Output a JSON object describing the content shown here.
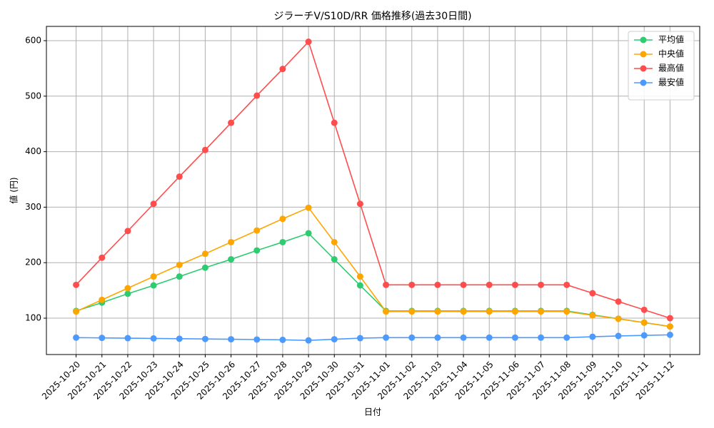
{
  "chart_data": {
    "type": "line",
    "title": "ジラーチV/S10D/RR 価格推移(過去30日間)",
    "x_label": "日付",
    "y_label": "値 (円)",
    "categories": [
      "2025-10-20",
      "2025-10-21",
      "2025-10-22",
      "2025-10-23",
      "2025-10-24",
      "2025-10-25",
      "2025-10-26",
      "2025-10-27",
      "2025-10-28",
      "2025-10-29",
      "2025-10-30",
      "2025-10-31",
      "2025-11-01",
      "2025-11-02",
      "2025-11-03",
      "2025-11-04",
      "2025-11-05",
      "2025-11-06",
      "2025-11-07",
      "2025-11-08",
      "2025-11-09",
      "2025-11-10",
      "2025-11-11",
      "2025-11-12"
    ],
    "series": [
      {
        "name": "平均値",
        "color": "#2ecc71",
        "values": [
          113,
          128,
          144,
          159,
          175,
          191,
          206,
          222,
          237,
          253,
          206,
          159,
          113,
          113,
          113,
          113,
          113,
          113,
          113,
          113,
          106,
          99,
          92,
          85
        ]
      },
      {
        "name": "中央値",
        "color": "#ffa500",
        "values": [
          112,
          133,
          154,
          175,
          196,
          216,
          237,
          258,
          279,
          299,
          237,
          175,
          112,
          112,
          112,
          112,
          112,
          112,
          112,
          112,
          105,
          99,
          92,
          85
        ]
      },
      {
        "name": "最高値",
        "color": "#ff4d4d",
        "values": [
          160,
          209,
          257,
          306,
          355,
          403,
          452,
          501,
          549,
          598,
          452,
          306,
          160,
          160,
          160,
          160,
          160,
          160,
          160,
          160,
          145,
          130,
          115,
          100
        ]
      },
      {
        "name": "最安値",
        "color": "#4d9aff",
        "values": [
          65,
          64.5,
          64,
          63.5,
          63,
          62.5,
          62,
          61.5,
          61,
          60,
          62,
          64,
          65,
          65,
          65,
          65,
          65,
          65,
          65,
          65,
          66.5,
          68,
          69,
          70
        ]
      }
    ],
    "ylim": [
      34.5,
      625.7
    ],
    "yticks": [
      100,
      200,
      300,
      400,
      500,
      600
    ],
    "grid": true,
    "legend": "upper-right"
  }
}
